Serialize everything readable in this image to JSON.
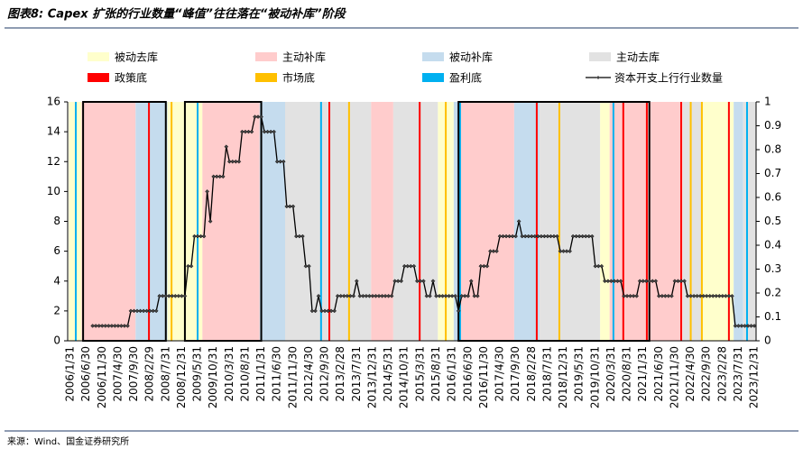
{
  "title": "图表8: Capex 扩张的行业数量“峰值”往往落在“被动补库”阶段",
  "source": "来源：Wind、国金证券研究所",
  "chart_data": {
    "type": "line",
    "categories": [
      "2006/1/31",
      null,
      null,
      null,
      null,
      "2006/6/30",
      null,
      null,
      null,
      null,
      "2006/11/30",
      null,
      null,
      null,
      null,
      "2007/4/30",
      null,
      null,
      null,
      null,
      "2007/9/30",
      null,
      null,
      null,
      null,
      "2008/2/29",
      null,
      null,
      null,
      null,
      "2008/7/31",
      null,
      null,
      null,
      null,
      "2008/12/31",
      null,
      null,
      null,
      null,
      "2009/5/31",
      null,
      null,
      null,
      null,
      "2009/10/31",
      null,
      null,
      null,
      null,
      "2010/3/31",
      null,
      null,
      null,
      null,
      "2010/8/31",
      null,
      null,
      null,
      null,
      "2011/1/31",
      null,
      null,
      null,
      null,
      "2011/6/30",
      null,
      null,
      null,
      null,
      "2011/11/30",
      null,
      null,
      null,
      null,
      "2012/4/30",
      null,
      null,
      null,
      null,
      "2012/9/30",
      null,
      null,
      null,
      null,
      "2013/2/28",
      null,
      null,
      null,
      null,
      "2013/7/31",
      null,
      null,
      null,
      null,
      "2013/12/31",
      null,
      null,
      null,
      null,
      "2014/5/31",
      null,
      null,
      null,
      null,
      "2014/10/31",
      null,
      null,
      null,
      null,
      "2015/3/31",
      null,
      null,
      null,
      null,
      "2015/8/31",
      null,
      null,
      null,
      null,
      "2016/1/31",
      null,
      null,
      null,
      null,
      "2016/6/30",
      null,
      null,
      null,
      null,
      "2016/11/30",
      null,
      null,
      null,
      null,
      "2017/4/30",
      null,
      null,
      null,
      null,
      "2017/9/30",
      null,
      null,
      null,
      null,
      "2018/2/28",
      null,
      null,
      null,
      null,
      "2018/7/31",
      null,
      null,
      null,
      null,
      "2018/12/31",
      null,
      null,
      null,
      null,
      "2019/5/31",
      null,
      null,
      null,
      null,
      "2019/10/31",
      null,
      null,
      null,
      null,
      "2020/3/31",
      null,
      null,
      null,
      null,
      "2020/8/31",
      null,
      null,
      null,
      null,
      "2021/1/31",
      null,
      null,
      null,
      null,
      "2021/6/30",
      null,
      null,
      null,
      null,
      "2021/11/30",
      null,
      null,
      null,
      null,
      "2022/4/30",
      null,
      null,
      null,
      null,
      "2022/9/30",
      null,
      null,
      null,
      null,
      "2023/2/28",
      null,
      null,
      null,
      null,
      "2023/7/31",
      null,
      null,
      null,
      null,
      "2023/12/31"
    ],
    "series": [
      {
        "name": "资本开支上行行业数量",
        "color": "#000000",
        "values": [
          null,
          null,
          null,
          null,
          null,
          null,
          null,
          1,
          1,
          1,
          1,
          1,
          1,
          1,
          1,
          1,
          1,
          1,
          1,
          2,
          2,
          2,
          2,
          2,
          2,
          2,
          2,
          2,
          3,
          3,
          3,
          3,
          3,
          3,
          3,
          3,
          3,
          5,
          5,
          7,
          7,
          7,
          7,
          10,
          8,
          11,
          11,
          11,
          11,
          13,
          12,
          12,
          12,
          12,
          14,
          14,
          14,
          14,
          15,
          15,
          15,
          14,
          14,
          14,
          14,
          12,
          12,
          12,
          9,
          9,
          9,
          7,
          7,
          7,
          5,
          5,
          2,
          2,
          3,
          2,
          2,
          2,
          2,
          2,
          3,
          3,
          3,
          3,
          3,
          3,
          4,
          3,
          3,
          3,
          3,
          3,
          3,
          3,
          3,
          3,
          3,
          3,
          4,
          4,
          4,
          5,
          5,
          5,
          5,
          4,
          4,
          4,
          3,
          3,
          4,
          3,
          3,
          3,
          3,
          3,
          3,
          3,
          2,
          3,
          3,
          3,
          4,
          3,
          3,
          5,
          5,
          5,
          6,
          6,
          6,
          7,
          7,
          7,
          7,
          7,
          7,
          8,
          7,
          7,
          7,
          7,
          7,
          7,
          7,
          7,
          7,
          7,
          7,
          7,
          6,
          6,
          6,
          6,
          7,
          7,
          7,
          7,
          7,
          7,
          7,
          5,
          5,
          5,
          4,
          4,
          4,
          4,
          4,
          4,
          3,
          3,
          3,
          3,
          3,
          4,
          4,
          4,
          4,
          4,
          4,
          3,
          3,
          3,
          3,
          3,
          4,
          4,
          4,
          4,
          3,
          3,
          3,
          3,
          3,
          3,
          3,
          3,
          3,
          3,
          3,
          3,
          3,
          3,
          3,
          1,
          1,
          1,
          1,
          1,
          1,
          1
        ]
      }
    ],
    "ylim": [
      0,
      16
    ],
    "yticks": [
      0,
      2,
      4,
      6,
      8,
      10,
      12,
      14,
      16
    ],
    "y2lim": [
      0,
      1
    ],
    "y2ticks": [
      0,
      0.1,
      0.2,
      0.3,
      0.4,
      0.5,
      0.6,
      0.7,
      0.8,
      0.9,
      1
    ],
    "phases": [
      {
        "name": "被动去库",
        "color": "#ffffcc",
        "spans": [
          [
            0,
            4
          ],
          [
            31,
            42
          ],
          [
            116,
            121
          ],
          [
            167,
            170
          ],
          [
            199,
            209
          ]
        ]
      },
      {
        "name": "主动补库",
        "color": "#ffcccc",
        "spans": [
          [
            4,
            21
          ],
          [
            42,
            60
          ],
          [
            95,
            102
          ],
          [
            123,
            140
          ],
          [
            170,
            193
          ]
        ]
      },
      {
        "name": "被动补库",
        "color": "#c5dcee",
        "spans": [
          [
            21,
            31
          ],
          [
            60,
            68
          ],
          [
            121,
            123
          ],
          [
            140,
            148
          ],
          [
            209,
            212
          ]
        ]
      },
      {
        "name": "主动去库",
        "color": "#e2e2e2",
        "spans": [
          [
            68,
            95
          ],
          [
            102,
            116
          ],
          [
            148,
            167
          ],
          [
            193,
            199
          ],
          [
            212,
            216
          ]
        ]
      }
    ],
    "bottoms": [
      {
        "name": "政策底",
        "color": "#ff0000",
        "at": [
          24.7,
          81.4,
          109.8,
          146.6,
          173.8,
          181.2,
          192,
          207
        ]
      },
      {
        "name": "市场底",
        "color": "#ffc000",
        "at": [
          31.8,
          87.6,
          118,
          153.7,
          195,
          198.5
        ]
      },
      {
        "name": "盈利底",
        "color": "#00b0f0",
        "at": [
          1.7,
          40,
          78.8,
          122.5,
          170.7,
          212.7
        ]
      }
    ],
    "boxes": [
      [
        4,
        30
      ],
      [
        36,
        60
      ],
      [
        122,
        182
      ]
    ]
  }
}
